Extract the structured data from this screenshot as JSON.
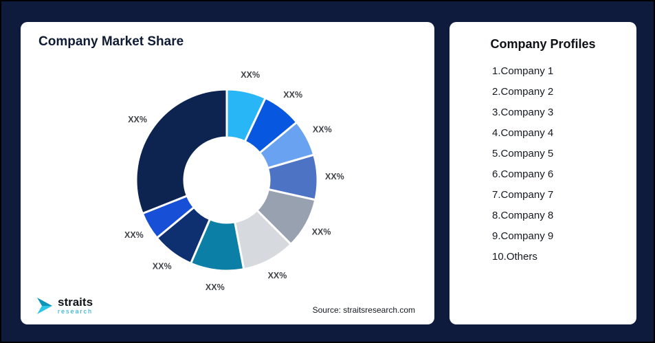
{
  "page": {
    "background": "#0e1b3d"
  },
  "left_card": {
    "title": "Company Market Share",
    "source": "Source: straitsresearch.com",
    "logo": {
      "line1": "straits",
      "line2": "research",
      "icon": "straits-arrow-icon",
      "icon_color_dark": "#0d93b8",
      "icon_color_light": "#2cc6e6"
    }
  },
  "right_card": {
    "title": "Company Profiles",
    "items": [
      "1.Company 1",
      "2.Company 2",
      "3.Company 3",
      "4.Company 4",
      "5.Company 5",
      "6.Company 6",
      "7.Company 7",
      "8.Company 8",
      "9.Company 9",
      "10.Others"
    ]
  },
  "chart_data": {
    "type": "pie",
    "subtype": "donut",
    "title": "Company Market Share",
    "source": "Source: straitsresearch.com",
    "legend": "none",
    "start_angle_deg": 0,
    "direction": "clockwise",
    "inner_radius_ratio": 0.45,
    "segments": [
      {
        "label": "XX%",
        "value": 7,
        "color": "#29b6f6",
        "name": "Company 1"
      },
      {
        "label": "XX%",
        "value": 7,
        "color": "#0857e0",
        "name": "Company 2"
      },
      {
        "label": "XX%",
        "value": 6.5,
        "color": "#6aa2f2",
        "name": "Company 3"
      },
      {
        "label": "XX%",
        "value": 8,
        "color": "#4d74c4",
        "name": "Company 4"
      },
      {
        "label": "XX%",
        "value": 9,
        "color": "#97a1af",
        "name": "Company 5"
      },
      {
        "label": "XX%",
        "value": 9.5,
        "color": "#d6dade",
        "name": "Company 6"
      },
      {
        "label": "XX%",
        "value": 9.5,
        "color": "#0c7fa6",
        "name": "Company 7"
      },
      {
        "label": "XX%",
        "value": 7.5,
        "color": "#0e2f70",
        "name": "Company 8"
      },
      {
        "label": "XX%",
        "value": 5,
        "color": "#1750d6",
        "name": "Company 9"
      },
      {
        "label": "XX%",
        "value": 31,
        "color": "#0d2450",
        "name": "Others"
      }
    ]
  }
}
